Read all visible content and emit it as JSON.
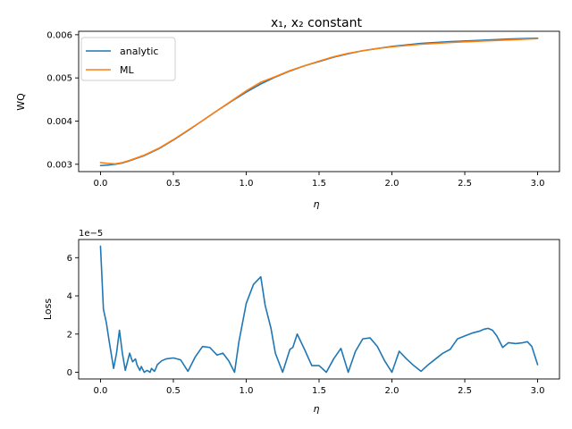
{
  "chart_data": [
    {
      "type": "line",
      "title": "x₁, x₂ constant",
      "xlabel": "η",
      "ylabel": "WQ",
      "xlim": [
        -0.15,
        3.15
      ],
      "ylim": [
        0.00283,
        0.00608
      ],
      "xticks": [
        "0.0",
        "0.5",
        "1.0",
        "1.5",
        "2.0",
        "2.5",
        "3.0"
      ],
      "xtick_values": [
        0,
        0.5,
        1.0,
        1.5,
        2.0,
        2.5,
        3.0
      ],
      "yticks": [
        "0.003",
        "0.004",
        "0.005",
        "0.006"
      ],
      "ytick_values": [
        0.003,
        0.004,
        0.005,
        0.006
      ],
      "grid": false,
      "legend_position": "top-left",
      "series": [
        {
          "name": "analytic",
          "color": "#1f77b4",
          "x": [
            0,
            0.05,
            0.1,
            0.15,
            0.2,
            0.3,
            0.4,
            0.5,
            0.6,
            0.7,
            0.8,
            0.9,
            1.0,
            1.1,
            1.2,
            1.3,
            1.4,
            1.5,
            1.6,
            1.7,
            1.8,
            1.9,
            2.0,
            2.2,
            2.4,
            2.6,
            2.8,
            3.0
          ],
          "y": [
            0.00297,
            0.00298,
            0.003,
            0.00303,
            0.00308,
            0.0032,
            0.00336,
            0.00356,
            0.00378,
            0.00401,
            0.00424,
            0.00446,
            0.00467,
            0.00486,
            0.00502,
            0.00516,
            0.00528,
            0.00538,
            0.00548,
            0.00556,
            0.00563,
            0.00568,
            0.00573,
            0.0058,
            0.00584,
            0.00587,
            0.0059,
            0.00592
          ]
        },
        {
          "name": "ML",
          "color": "#ff7f0e",
          "x": [
            0,
            0.05,
            0.1,
            0.15,
            0.2,
            0.3,
            0.4,
            0.5,
            0.6,
            0.7,
            0.8,
            0.9,
            1.0,
            1.1,
            1.2,
            1.3,
            1.4,
            1.5,
            1.6,
            1.7,
            1.8,
            1.9,
            2.0,
            2.2,
            2.4,
            2.6,
            2.8,
            3.0
          ],
          "y": [
            0.00304,
            0.00302,
            0.00301,
            0.00304,
            0.00309,
            0.00321,
            0.00337,
            0.00357,
            0.00379,
            0.00401,
            0.00424,
            0.00447,
            0.0047,
            0.0049,
            0.00503,
            0.00517,
            0.00528,
            0.00539,
            0.00549,
            0.00557,
            0.00563,
            0.00568,
            0.00572,
            0.00578,
            0.00582,
            0.00585,
            0.00588,
            0.00591
          ]
        }
      ]
    },
    {
      "type": "line",
      "title": "",
      "xlabel": "η",
      "ylabel": "Loss",
      "offset_text": "1e−5",
      "xlim": [
        -0.15,
        3.15
      ],
      "ylim": [
        -3.5e-06,
        6.95e-05
      ],
      "xticks": [
        "0.0",
        "0.5",
        "1.0",
        "1.5",
        "2.0",
        "2.5",
        "3.0"
      ],
      "xtick_values": [
        0,
        0.5,
        1.0,
        1.5,
        2.0,
        2.5,
        3.0
      ],
      "yticks": [
        "0",
        "2",
        "4",
        "6"
      ],
      "ytick_values": [
        0,
        2e-05,
        4e-05,
        6e-05
      ],
      "grid": false,
      "series": [
        {
          "name": "",
          "color": "#1f77b4",
          "x": [
            0.0,
            0.02,
            0.04,
            0.06,
            0.09,
            0.11,
            0.13,
            0.15,
            0.17,
            0.2,
            0.22,
            0.24,
            0.25,
            0.27,
            0.28,
            0.3,
            0.32,
            0.34,
            0.35,
            0.37,
            0.38,
            0.39,
            0.42,
            0.45,
            0.5,
            0.55,
            0.6,
            0.65,
            0.7,
            0.75,
            0.8,
            0.84,
            0.88,
            0.92,
            0.95,
            1.0,
            1.05,
            1.1,
            1.13,
            1.17,
            1.2,
            1.25,
            1.3,
            1.32,
            1.35,
            1.4,
            1.45,
            1.5,
            1.55,
            1.6,
            1.65,
            1.7,
            1.75,
            1.8,
            1.85,
            1.9,
            1.95,
            2.0,
            2.05,
            2.1,
            2.15,
            2.2,
            2.25,
            2.3,
            2.35,
            2.4,
            2.45,
            2.5,
            2.55,
            2.6,
            2.63,
            2.66,
            2.69,
            2.72,
            2.76,
            2.8,
            2.85,
            2.9,
            2.93,
            2.96,
            3.0
          ],
          "y": [
            6.6e-05,
            3.3e-05,
            2.6e-05,
            1.6e-05,
            2e-06,
            1e-05,
            2.2e-05,
            1e-05,
            1e-06,
            1e-05,
            5.5e-06,
            7e-06,
            4e-06,
            1e-06,
            3e-06,
            0.0,
            1e-06,
            0.0,
            2e-06,
            5e-07,
            2e-06,
            4e-06,
            6e-06,
            7e-06,
            7.5e-06,
            6.5e-06,
            5e-07,
            8e-06,
            1.35e-05,
            1.3e-05,
            9e-06,
            1e-05,
            6e-06,
            0.0,
            1.6e-05,
            3.6e-05,
            4.6e-05,
            5e-05,
            3.5e-05,
            2.3e-05,
            1e-05,
            0.0,
            1.2e-05,
            1.3e-05,
            2e-05,
            1.2e-05,
            3.5e-06,
            3.5e-06,
            0.0,
            7e-06,
            1.25e-05,
            0.0,
            1.1e-05,
            1.75e-05,
            1.8e-05,
            1.35e-05,
            6e-06,
            0.0,
            1.1e-05,
            7e-06,
            3.5e-06,
            5e-07,
            4e-06,
            7e-06,
            1e-05,
            1.2e-05,
            1.75e-05,
            1.9e-05,
            2.05e-05,
            2.15e-05,
            2.25e-05,
            2.3e-05,
            2.2e-05,
            1.9e-05,
            1.3e-05,
            1.55e-05,
            1.5e-05,
            1.55e-05,
            1.6e-05,
            1.35e-05,
            4e-06
          ]
        }
      ]
    }
  ]
}
